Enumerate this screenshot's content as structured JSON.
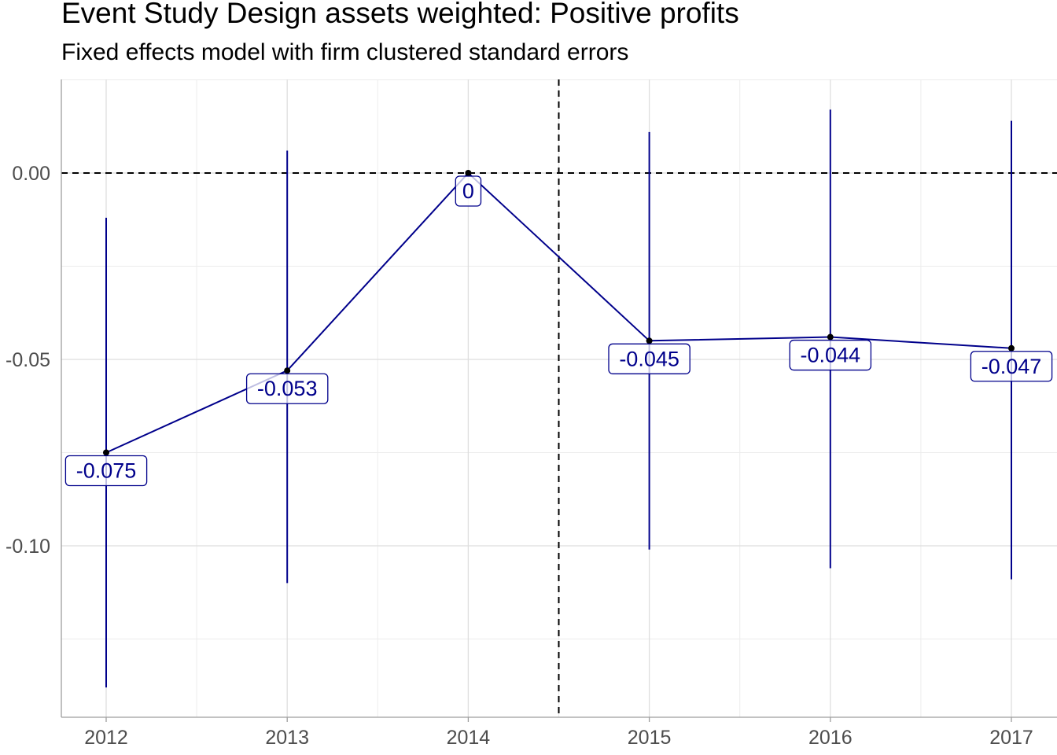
{
  "chart_data": {
    "type": "line",
    "title": "Event Study Design assets weighted: Positive profits",
    "subtitle": "Fixed effects model with firm clustered standard errors",
    "xlabel": "",
    "ylabel": "",
    "categories": [
      "2012",
      "2013",
      "2014",
      "2015",
      "2016",
      "2017"
    ],
    "series": [
      {
        "values": [
          -0.075,
          -0.053,
          0,
          -0.045,
          -0.044,
          -0.047
        ],
        "labels": [
          "-0.075",
          "-0.053",
          "0",
          "-0.045",
          "-0.044",
          "-0.047"
        ],
        "ci_low": [
          -0.138,
          -0.11,
          0,
          -0.101,
          -0.106,
          -0.109
        ],
        "ci_high": [
          -0.012,
          0.006,
          0,
          0.011,
          0.017,
          0.014
        ]
      }
    ],
    "y_ticks": [
      {
        "value": 0.0,
        "label": "0.00"
      },
      {
        "value": -0.05,
        "label": "-0.05"
      },
      {
        "value": -0.1,
        "label": "-0.10"
      }
    ],
    "ylim": [
      -0.146,
      0.025
    ],
    "reference_lines": {
      "horizontal_y": 0,
      "vertical_between": [
        "2014",
        "2015"
      ]
    },
    "grid": true,
    "legend": "none",
    "colors": {
      "series": "#00008b",
      "point": "#000000",
      "grid": "#dedede",
      "reference": "#000000"
    }
  }
}
